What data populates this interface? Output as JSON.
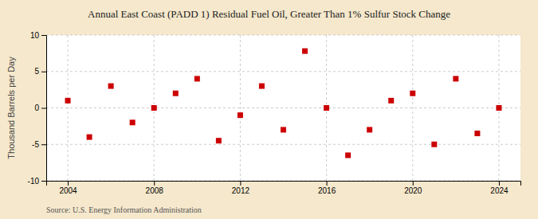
{
  "chart_data": {
    "type": "scatter",
    "title": "Annual East Coast (PADD 1) Residual Fuel Oil, Greater Than 1% Sulfur Stock Change",
    "y_label": "Thousand Barrels per Day",
    "source": "Source: U.S. Energy Information Administration",
    "x": [
      2004,
      2005,
      2006,
      2007,
      2008,
      2009,
      2010,
      2011,
      2012,
      2013,
      2014,
      2015,
      2016,
      2017,
      2018,
      2019,
      2020,
      2021,
      2022,
      2023,
      2024
    ],
    "values": [
      1.0,
      -4.0,
      3.0,
      -2.0,
      0.0,
      2.0,
      4.0,
      -4.5,
      -1.0,
      3.0,
      -3.0,
      7.8,
      0.0,
      -6.5,
      -3.0,
      1.0,
      2.0,
      -5.0,
      4.0,
      -3.5,
      0.0
    ],
    "color": "#cc0000",
    "marker": "square",
    "xlim": [
      2003.0,
      2025.0
    ],
    "ylim": [
      -10,
      10
    ],
    "xticks": [
      2004,
      2008,
      2012,
      2016,
      2020,
      2024
    ],
    "yticks": [
      -10,
      -5,
      0,
      5,
      10
    ],
    "grid": true
  }
}
